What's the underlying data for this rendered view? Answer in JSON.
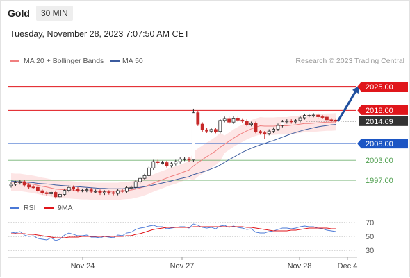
{
  "header": {
    "instrument": "Gold",
    "interval": "30 MIN",
    "datetime": "Tuesday, November 28, 2023 7:07:50 AM CET"
  },
  "credit": "Research © 2023 Trading Central",
  "colors": {
    "resistance": "#e0161b",
    "support": "#1c56c4",
    "pivot": "#4f9f4f",
    "last": "#333333",
    "ma20": "#f07f7f",
    "ma50": "#3b5b9e",
    "bands": "#fde1e1",
    "rsi": "#4a78d6",
    "rsi_ma": "#e0161b",
    "arrow": "#1f4f9e"
  },
  "chart_data": [
    {
      "type": "candlestick",
      "title": "",
      "legend": [
        {
          "name": "MA 20 + Bollinger Bands",
          "color": "#f07f7f"
        },
        {
          "name": "MA 50",
          "color": "#3b5b9e"
        }
      ],
      "legend_position": "top-left",
      "x_ticks": [
        "Nov 24",
        "Nov 27",
        "Nov 28",
        "Dec 4"
      ],
      "y_range": [
        1990.6,
        2030.0
      ],
      "levels": [
        {
          "label": "2025.00",
          "value": 2025.0,
          "role": "resistance"
        },
        {
          "label": "2018.00",
          "value": 2018.0,
          "role": "resistance"
        },
        {
          "label": "2008.00",
          "value": 2008.0,
          "role": "support"
        },
        {
          "label": "2003.00",
          "value": 2003.0,
          "role": "pivot"
        },
        {
          "label": "1997.00",
          "value": 1997.0,
          "role": "pivot"
        }
      ],
      "last_price": {
        "label": "2014.69",
        "value": 2014.69
      },
      "projection": {
        "from": 2014.7,
        "to": 2025.0
      },
      "closes": [
        1995.8,
        1996.3,
        1996.6,
        1995.6,
        1995.0,
        1994.9,
        1993.9,
        1993.3,
        1993.0,
        1993.4,
        1992.1,
        1992.8,
        1994.0,
        1994.9,
        1994.4,
        1994.0,
        1994.0,
        1994.2,
        1993.7,
        1993.7,
        1993.2,
        1993.5,
        1993.3,
        1993.1,
        1993.9,
        1993.7,
        1994.8,
        1994.9,
        1996.6,
        1997.6,
        1998.4,
        2000.7,
        2002.6,
        2002.3,
        2002.3,
        2001.4,
        2002.0,
        2002.6,
        2003.3,
        2003.4,
        2003.1,
        2017.2,
        2013.8,
        2012.1,
        2011.7,
        2012.2,
        2011.6,
        2014.9,
        2015.5,
        2014.4,
        2015.6,
        2015.0,
        2014.7,
        2013.7,
        2014.0,
        2011.6,
        2011.2,
        2011.0,
        2011.7,
        2012.3,
        2013.4,
        2014.5,
        2014.7,
        2014.5,
        2014.9,
        2015.7,
        2016.4,
        2016.4,
        2016.5,
        2016.0,
        2015.9,
        2015.1,
        2015.0,
        2014.7
      ],
      "ma20": [
        1996.5,
        1996.4,
        1996.4,
        1996.2,
        1996.0,
        1995.8,
        1995.5,
        1995.2,
        1995.0,
        1994.7,
        1994.4,
        1994.3,
        1994.2,
        1994.2,
        1994.1,
        1994.0,
        1993.9,
        1993.9,
        1993.8,
        1993.7,
        1993.7,
        1993.7,
        1993.7,
        1993.7,
        1993.7,
        1993.9,
        1994.0,
        1994.1,
        1994.4,
        1994.7,
        1995.1,
        1995.6,
        1996.2,
        1996.7,
        1997.2,
        1997.7,
        1998.2,
        1998.6,
        1999.1,
        1999.6,
        2000.1,
        2001.3,
        2002.3,
        2003.2,
        2004.1,
        2004.9,
        2005.8,
        2006.9,
        2007.8,
        2008.7,
        2009.6,
        2010.4,
        2011.1,
        2011.8,
        2012.4,
        2012.9,
        2013.3,
        2013.2,
        2013.2,
        2013.2,
        2013.3,
        2013.3,
        2013.3,
        2013.5,
        2013.6,
        2013.8,
        2014.0,
        2014.0,
        2014.1,
        2014.2,
        2014.3,
        2014.4,
        2014.4,
        2014.5
      ],
      "ma50": [
        1996.8,
        1996.7,
        1996.6,
        1996.5,
        1996.4,
        1996.3,
        1996.1,
        1996.0,
        1995.9,
        1995.8,
        1995.6,
        1995.5,
        1995.4,
        1995.3,
        1995.2,
        1995.1,
        1995.0,
        1994.9,
        1994.8,
        1994.7,
        1994.6,
        1994.6,
        1994.5,
        1994.5,
        1994.5,
        1994.5,
        1994.6,
        1994.7,
        1994.8,
        1994.9,
        1995.1,
        1995.3,
        1995.6,
        1995.9,
        1996.2,
        1996.5,
        1996.8,
        1997.2,
        1997.5,
        1997.8,
        1998.1,
        1998.7,
        1999.1,
        1999.5,
        1999.9,
        2000.4,
        2000.9,
        2001.6,
        2002.4,
        2003.2,
        2003.9,
        2004.7,
        2005.4,
        2006.0,
        2006.6,
        2007.1,
        2007.6,
        2008.0,
        2008.5,
        2008.9,
        2009.4,
        2009.9,
        2010.4,
        2010.9,
        2011.3,
        2011.7,
        2012.1,
        2012.4,
        2012.7,
        2013.0,
        2013.2,
        2013.4,
        2013.6,
        2013.7
      ]
    },
    {
      "type": "line",
      "title": "",
      "legend": [
        {
          "name": "RSI",
          "color": "#4a78d6"
        },
        {
          "name": "9MA",
          "color": "#e0161b"
        }
      ],
      "legend_position": "top-left",
      "y_ticks": [
        70,
        50,
        30
      ],
      "y_range": [
        20,
        80
      ],
      "x_ticks": [
        "Nov 24",
        "Nov 27",
        "Nov 28",
        "Dec 4"
      ],
      "series": [
        {
          "name": "RSI",
          "values": [
            56,
            55,
            57,
            52,
            50,
            51,
            47,
            46,
            45,
            48,
            44,
            46,
            52,
            55,
            53,
            51,
            51,
            52,
            49,
            49,
            48,
            50,
            49,
            48,
            52,
            51,
            55,
            56,
            60,
            62,
            63,
            65,
            66,
            64,
            64,
            61,
            62,
            63,
            64,
            64,
            62,
            68,
            66,
            63,
            62,
            63,
            61,
            65,
            66,
            63,
            65,
            63,
            62,
            60,
            61,
            56,
            55,
            55,
            57,
            58,
            60,
            62,
            62,
            61,
            62,
            64,
            65,
            64,
            64,
            62,
            61,
            59,
            58,
            57
          ]
        },
        {
          "name": "9MA",
          "values": [
            54,
            54,
            54,
            54,
            53,
            53,
            52,
            51,
            50,
            49,
            48,
            48,
            48,
            49,
            49,
            49,
            50,
            50,
            50,
            50,
            50,
            50,
            50,
            50,
            50,
            50,
            51,
            51,
            53,
            54,
            56,
            58,
            60,
            61,
            62,
            63,
            63,
            63,
            63,
            63,
            63,
            64,
            64,
            64,
            64,
            64,
            64,
            64,
            64,
            64,
            64,
            64,
            64,
            63,
            63,
            62,
            61,
            60,
            59,
            58,
            58,
            58,
            58,
            59,
            59,
            60,
            61,
            62,
            62,
            62,
            62,
            62,
            61,
            61
          ]
        }
      ]
    }
  ]
}
